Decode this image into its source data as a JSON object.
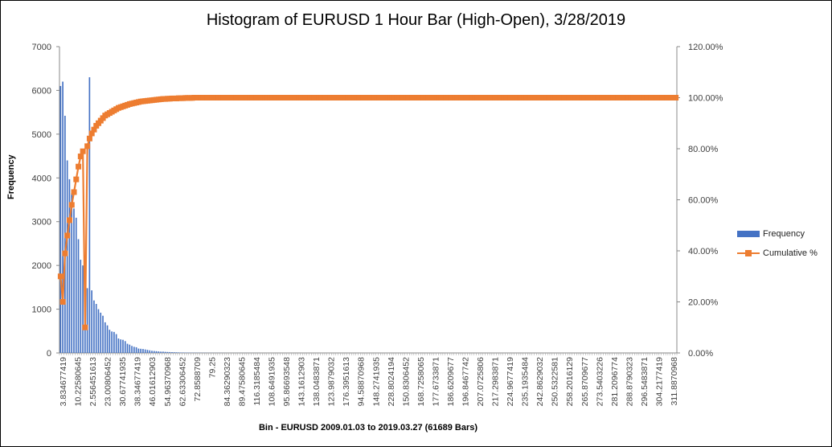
{
  "chart_data": {
    "type": "bar",
    "title": "Histogram of EURUSD 1 Hour Bar (High-Open), 3/28/2019",
    "xlabel": "Bin - EURUSD 2009.01.03 to 2019.03.27 (61689 Bars)",
    "ylabel": "Frequency",
    "ylim": [
      0,
      7000
    ],
    "y2lim": [
      0,
      1.2
    ],
    "y_ticks": [
      "0",
      "1000",
      "2000",
      "3000",
      "4000",
      "5000",
      "6000",
      "7000"
    ],
    "y2_ticks": [
      "0.00%",
      "20.00%",
      "40.00%",
      "60.00%",
      "80.00%",
      "100.00%",
      "120.00%"
    ],
    "x_tick_labels": [
      "3.834677419",
      "10.22580645",
      "2.556451613",
      "23.00806452",
      "30.67741935",
      "38.34677419",
      "46.01612903",
      "54.96370968",
      "62.63306452",
      "72.8588709",
      "79.25",
      "84.36290323",
      "89.47580645",
      "116.3185484",
      "108.6491935",
      "95.86693548",
      "143.1612903",
      "138.0483871",
      "123.9879032",
      "176.3951613",
      "94.58870968",
      "148.2741935",
      "228.8024194",
      "150.8306452",
      "168.7258065",
      "177.6733871",
      "186.6209677",
      "196.8467742",
      "207.0725806",
      "217.2983871",
      "224.9677419",
      "235.1935484",
      "242.8629032",
      "250.5322581",
      "258.2016129",
      "265.8709677",
      "273.5403226",
      "281.2096774",
      "288.8790323",
      "296.5483871",
      "304.2177419",
      "311.8870968"
    ],
    "grid": false,
    "legend_position": "right",
    "series": [
      {
        "name": "Frequency",
        "type": "bar",
        "color": "#4472c4",
        "values": [
          6100,
          6200,
          5420,
          4400,
          3970,
          3650,
          3300,
          3090,
          2600,
          2130,
          2000,
          1690,
          1480,
          6300,
          1430,
          1200,
          1120,
          1000,
          920,
          850,
          700,
          630,
          530,
          490,
          480,
          430,
          330,
          310,
          300,
          270,
          210,
          190,
          160,
          140,
          130,
          100,
          95,
          90,
          80,
          70,
          60,
          50,
          45,
          40,
          35,
          30,
          30,
          25,
          22,
          20,
          18,
          16,
          14,
          12,
          10,
          10,
          8,
          8,
          7,
          6,
          6,
          5,
          5,
          4,
          4,
          4,
          3,
          3,
          3,
          2,
          2,
          2,
          2,
          2,
          1,
          1,
          1,
          1,
          1,
          1,
          1,
          1,
          1,
          1,
          1,
          1,
          1,
          1,
          1,
          1,
          0,
          0,
          0,
          0,
          0,
          0,
          0,
          0,
          0,
          0,
          0,
          0,
          0,
          0,
          0,
          0,
          0,
          0,
          0,
          0,
          0,
          0,
          0,
          0,
          0,
          0,
          0,
          0,
          0,
          0,
          0,
          0,
          0,
          0,
          0,
          0,
          0,
          0,
          0,
          0,
          0,
          0,
          0,
          0,
          0,
          0,
          0,
          0,
          0,
          0,
          0,
          0,
          0,
          0,
          0,
          0,
          0,
          0,
          0,
          0,
          0,
          0,
          0,
          0,
          0,
          0,
          0,
          0,
          0,
          0,
          0,
          0,
          0,
          0,
          0,
          0,
          0,
          0,
          0,
          0,
          0,
          0,
          0,
          0,
          0,
          0,
          0,
          0,
          0,
          0,
          0,
          0,
          0,
          0,
          0,
          0,
          0,
          0,
          0,
          0,
          0,
          0,
          0,
          0,
          0,
          0,
          0,
          0,
          0,
          0,
          0,
          0,
          0,
          0,
          0,
          0,
          0,
          0,
          0,
          0,
          0,
          0,
          0,
          0,
          0,
          0,
          0,
          0,
          0,
          0,
          0,
          0,
          0,
          0,
          0,
          0,
          0,
          0,
          0,
          0,
          0,
          0,
          0,
          0,
          0,
          0,
          0,
          0,
          0,
          0,
          0,
          0,
          0,
          0,
          0,
          0,
          0,
          0,
          0,
          0,
          0,
          0,
          0,
          0,
          0,
          0,
          0,
          0,
          0,
          0,
          0,
          0,
          0,
          0,
          0,
          0,
          0,
          0,
          0,
          0,
          0,
          0,
          0,
          0,
          0,
          0,
          0
        ]
      },
      {
        "name": "Cumulative %",
        "type": "line",
        "axis": "right",
        "color": "#ed7d31",
        "marker": "square",
        "values": [
          0.3,
          0.2,
          0.39,
          0.46,
          0.52,
          0.58,
          0.63,
          0.68,
          0.73,
          0.77,
          0.79,
          0.1,
          0.81,
          0.84,
          0.86,
          0.875,
          0.89,
          0.9,
          0.91,
          0.92,
          0.93,
          0.935,
          0.94,
          0.945,
          0.95,
          0.955,
          0.96,
          0.963,
          0.966,
          0.969,
          0.972,
          0.975,
          0.977,
          0.979,
          0.981,
          0.983,
          0.985,
          0.986,
          0.987,
          0.988,
          0.989,
          0.99,
          0.991,
          0.992,
          0.993,
          0.994,
          0.995,
          0.995,
          0.996,
          0.996,
          0.997,
          0.997,
          0.997,
          0.998,
          0.998,
          0.998,
          0.999,
          0.999,
          0.999,
          0.999,
          1.0
        ]
      }
    ]
  },
  "legend": {
    "items": [
      {
        "label": "Frequency",
        "color": "#4472c4"
      },
      {
        "label": "Cumulative %",
        "color": "#ed7d31"
      }
    ]
  }
}
